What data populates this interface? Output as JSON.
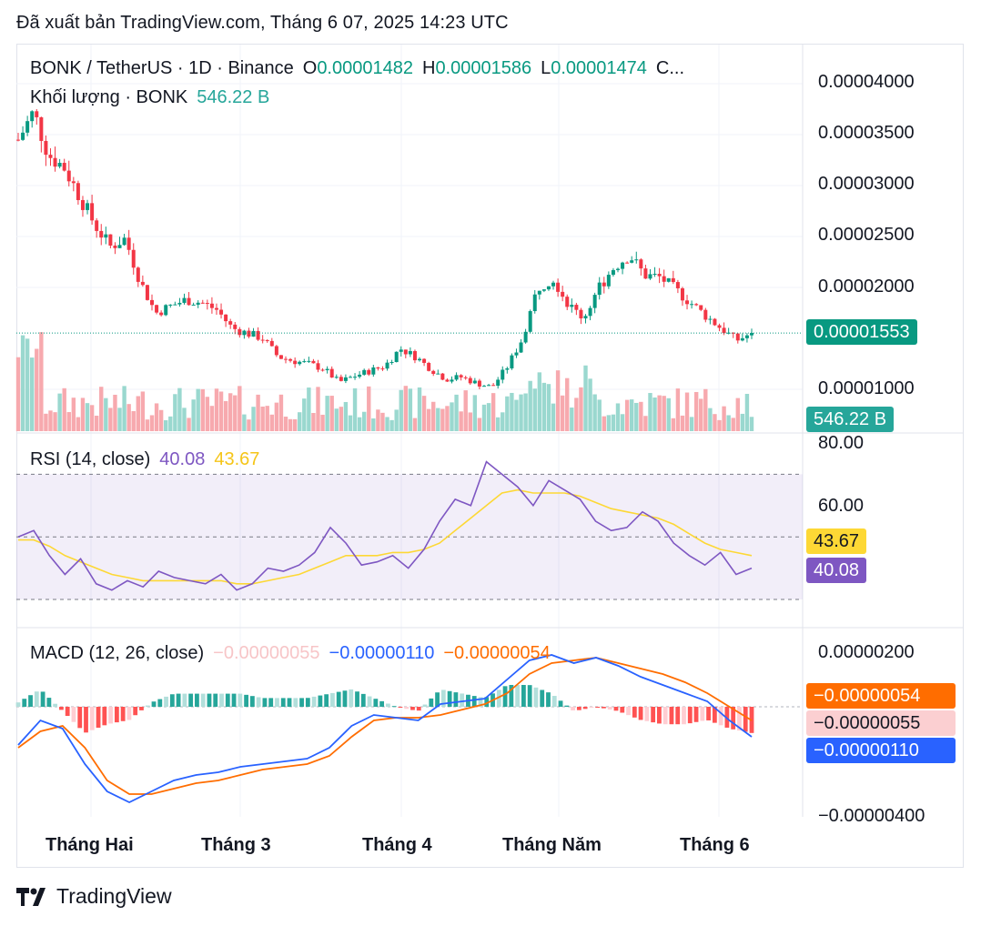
{
  "published": "Đã xuất bản TradingView.com, Tháng 6 07, 2025 14:23 UTC",
  "header": {
    "symbol": "BONK / TetherUS · 1D · Binance",
    "o_label": "O",
    "o_value": "0.00001482",
    "h_label": "H",
    "h_value": "0.00001586",
    "l_label": "L",
    "l_value": "0.00001474",
    "c_label": "C..."
  },
  "volume_legend": {
    "label": "Khối lượng · BONK",
    "value": "546.22 B"
  },
  "rsi_legend": {
    "label": "RSI (14, close)",
    "rsi": "40.08",
    "ma": "43.67"
  },
  "macd_legend": {
    "label": "MACD (12, 26, close)",
    "hist": "−0.00000055",
    "macd": "−0.00000110",
    "signal": "−0.00000054"
  },
  "price_axis": [
    "0.00004000",
    "0.00003500",
    "0.00003000",
    "0.00002500",
    "0.00002000",
    "0.00001000"
  ],
  "price_badge": "0.00001553",
  "volume_badge": "546.22 B",
  "rsi_axis": [
    "80.00",
    "60.00"
  ],
  "rsi_badges": {
    "ma": "43.67",
    "rsi": "40.08"
  },
  "macd_axis": {
    "top": "0.00000200",
    "bottom": "−0.00000400"
  },
  "macd_badges": {
    "signal": "−0.00000054",
    "hist": "−0.00000055",
    "macd": "−0.00000110"
  },
  "x_labels": [
    "Tháng Hai",
    "Tháng 3",
    "Tháng 4",
    "Tháng Năm",
    "Tháng 6"
  ],
  "brand": "TradingView",
  "colors": {
    "up": "#089981",
    "down": "#f23645",
    "rsi": "#7e57c2",
    "rsi_ma": "#fdd835",
    "macd": "#2962ff",
    "signal": "#ff6d00"
  },
  "chart_data": [
    {
      "type": "candlestick",
      "title": "BONK / TetherUS · 1D · Binance",
      "ylim": [
        5.5e-06,
        4e-05
      ],
      "x_labels": [
        "Tháng Hai",
        "Tháng 3",
        "Tháng 4",
        "Tháng Năm",
        "Tháng 6"
      ],
      "close_path": [
        3.45e-05,
        3.72e-05,
        3.3e-05,
        3.18e-05,
        2.9e-05,
        2.62e-05,
        2.4e-05,
        2.48e-05,
        2.05e-05,
        1.75e-05,
        1.82e-05,
        1.88e-05,
        1.85e-05,
        1.78e-05,
        1.6e-05,
        1.55e-05,
        1.5e-05,
        1.32e-05,
        1.28e-05,
        1.25e-05,
        1.2e-05,
        1.07e-05,
        1.13e-05,
        1.18e-05,
        1.23e-05,
        1.4e-05,
        1.32e-05,
        1.2e-05,
        1.1e-05,
        1.12e-05,
        1.06e-05,
        1.02e-05,
        1.22e-05,
        1.5e-05,
        2e-05,
        2.1e-05,
        1.83e-05,
        1.7e-05,
        2e-05,
        2.2e-05,
        2.32e-05,
        2.12e-05,
        2.1e-05,
        1.98e-05,
        1.85e-05,
        1.72e-05,
        1.6e-05,
        1.48e-05,
        1.55e-05
      ],
      "last_price": 1.553e-05,
      "volume": {
        "last": "546.22 B"
      }
    },
    {
      "type": "line",
      "title": "RSI (14, close)",
      "ylim": [
        30,
        80
      ],
      "series": [
        {
          "name": "RSI",
          "last": 40.08,
          "values": [
            50,
            52,
            44,
            38,
            43,
            35,
            33,
            36,
            34,
            39,
            37,
            36,
            35,
            38,
            33,
            35,
            40,
            39,
            41,
            45,
            53,
            48,
            41,
            42,
            44,
            40,
            46,
            55,
            62,
            60,
            74,
            70,
            66,
            60,
            68,
            65,
            62,
            55,
            52,
            53,
            58,
            55,
            48,
            44,
            41,
            45,
            38,
            40
          ]
        },
        {
          "name": "MA",
          "last": 43.67,
          "values": [
            49,
            49,
            47,
            44,
            42,
            40,
            38,
            37,
            36,
            36,
            36,
            36,
            36,
            36,
            35,
            35,
            36,
            37,
            38,
            40,
            42,
            44,
            44,
            44,
            45,
            45,
            46,
            48,
            52,
            56,
            60,
            64,
            65,
            64,
            64,
            64,
            63,
            61,
            59,
            58,
            57,
            56,
            54,
            51,
            48,
            46,
            45,
            44
          ]
        }
      ],
      "guides": [
        70,
        50,
        30
      ]
    },
    {
      "type": "line",
      "title": "MACD (12, 26, close)",
      "ylim": [
        -4.2e-06,
        2.2e-06
      ],
      "series": [
        {
          "name": "MACD",
          "last": -1.1e-06,
          "values": [
            -1.4e-06,
            -5e-07,
            -8e-07,
            -2.1e-06,
            -3.1e-06,
            -3.5e-06,
            -3.1e-06,
            -2.7e-06,
            -2.5e-06,
            -2.4e-06,
            -2.2e-06,
            -2.1e-06,
            -2e-06,
            -1.9e-06,
            -1.5e-06,
            -7e-07,
            -3e-07,
            -4e-07,
            -5e-07,
            1e-07,
            2e-07,
            3e-07,
            1e-06,
            1.7e-06,
            1.9e-06,
            1.6e-06,
            1.8e-06,
            1.5e-06,
            1.1e-06,
            8e-07,
            5e-07,
            2e-07,
            -5e-07,
            -1.1e-06
          ]
        },
        {
          "name": "Signal",
          "last": -5.4e-07,
          "values": [
            -1.5e-06,
            -9e-07,
            -7e-07,
            -1.5e-06,
            -2.7e-06,
            -3.2e-06,
            -3.2e-06,
            -3e-06,
            -2.8e-06,
            -2.7e-06,
            -2.5e-06,
            -2.3e-06,
            -2.2e-06,
            -2.1e-06,
            -1.8e-06,
            -1.1e-06,
            -5e-07,
            -4e-07,
            -4e-07,
            -3e-07,
            -1e-07,
            1e-07,
            5e-07,
            1.2e-06,
            1.6e-06,
            1.7e-06,
            1.8e-06,
            1.6e-06,
            1.4e-06,
            1.2e-06,
            9e-07,
            5e-07,
            0.0,
            -5e-07
          ]
        }
      ]
    }
  ]
}
